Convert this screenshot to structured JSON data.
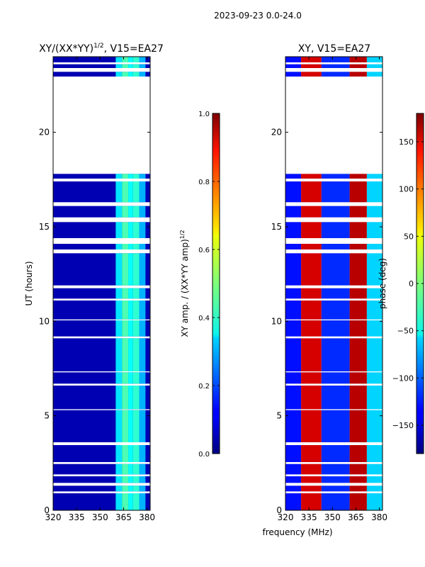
{
  "figure": {
    "suptitle": "2023-09-23 0.0-24.0",
    "xlabel": "frequency (MHz)"
  },
  "chart_data": [
    {
      "type": "heatmap",
      "title": "XY/(XX*YY)",
      "title_exp": "1/2",
      "title_suffix": ", V15=EA27",
      "xlabel": "frequency (MHz)",
      "ylabel": "UT (hours)",
      "xlim": [
        320,
        382
      ],
      "ylim": [
        0,
        24
      ],
      "xticks": [
        320,
        335,
        350,
        365,
        380
      ],
      "yticks": [
        0,
        5,
        10,
        15,
        20
      ],
      "colorbar": {
        "label": "XY amp. / (XX*YY amp)",
        "label_exp": "1/2",
        "range": [
          0.0,
          1.0
        ],
        "ticks": [
          "0.0",
          "0.2",
          "0.4",
          "0.6",
          "0.8",
          "1.0"
        ],
        "colormap": "jet"
      },
      "background_value": 0.05,
      "band_values": [
        {
          "from": 360,
          "to": 364,
          "value": 0.35
        },
        {
          "from": 364,
          "to": 368,
          "value": 0.45
        },
        {
          "from": 368,
          "to": 371,
          "value": 0.38
        },
        {
          "from": 371,
          "to": 375,
          "value": 0.42
        },
        {
          "from": 375,
          "to": 379,
          "value": 0.3
        }
      ],
      "data_gaps_ut": [
        [
          0.9,
          1.0
        ],
        [
          1.3,
          1.45
        ],
        [
          1.8,
          1.9
        ],
        [
          2.45,
          2.55
        ],
        [
          3.45,
          3.6
        ],
        [
          5.3,
          5.35
        ],
        [
          6.6,
          6.7
        ],
        [
          7.3,
          7.35
        ],
        [
          9.1,
          9.2
        ],
        [
          10.05,
          10.1
        ],
        [
          11.1,
          11.2
        ],
        [
          11.75,
          11.9
        ],
        [
          13.6,
          13.8
        ],
        [
          14.1,
          14.4
        ],
        [
          15.25,
          15.5
        ],
        [
          16.1,
          16.3
        ],
        [
          17.4,
          17.55
        ],
        [
          17.8,
          22.95
        ],
        [
          23.2,
          23.4
        ],
        [
          23.6,
          23.7
        ]
      ]
    },
    {
      "type": "heatmap",
      "title": "XY, V15=EA27",
      "xlabel": "frequency (MHz)",
      "ylabel": "",
      "xlim": [
        320,
        382
      ],
      "ylim": [
        0,
        24
      ],
      "xticks": [
        320,
        335,
        350,
        365,
        380
      ],
      "yticks": [
        0,
        5,
        10,
        15,
        20
      ],
      "colorbar": {
        "label": "phase (deg)",
        "range": [
          -180,
          180
        ],
        "ticks": [
          "−150",
          "−100",
          "−50",
          "0",
          "50",
          "100",
          "150"
        ],
        "tick_values": [
          -150,
          -100,
          -50,
          0,
          50,
          100,
          150
        ],
        "colormap": "jet"
      },
      "band_values": [
        {
          "from": 320,
          "to": 330,
          "value": -130
        },
        {
          "from": 330,
          "to": 343,
          "value": 150
        },
        {
          "from": 343,
          "to": 361,
          "value": -120
        },
        {
          "from": 361,
          "to": 372,
          "value": 160
        },
        {
          "from": 372,
          "to": 382,
          "value": -60
        }
      ],
      "data_gaps_ut": [
        [
          0.9,
          1.0
        ],
        [
          1.3,
          1.45
        ],
        [
          1.8,
          1.9
        ],
        [
          2.45,
          2.55
        ],
        [
          3.45,
          3.6
        ],
        [
          5.3,
          5.35
        ],
        [
          6.6,
          6.7
        ],
        [
          7.3,
          7.35
        ],
        [
          9.1,
          9.2
        ],
        [
          10.05,
          10.1
        ],
        [
          11.1,
          11.2
        ],
        [
          11.75,
          11.9
        ],
        [
          13.6,
          13.8
        ],
        [
          14.1,
          14.4
        ],
        [
          15.25,
          15.5
        ],
        [
          16.1,
          16.3
        ],
        [
          17.4,
          17.55
        ],
        [
          17.8,
          22.95
        ],
        [
          23.2,
          23.4
        ],
        [
          23.6,
          23.7
        ]
      ]
    }
  ]
}
